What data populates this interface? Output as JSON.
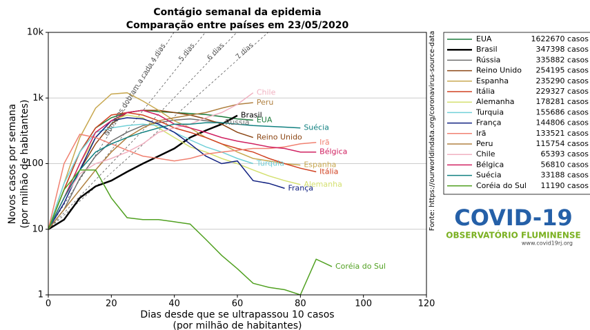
{
  "chart_data": {
    "type": "line",
    "title": "Contágio semanal da epidemia",
    "subtitle": "Comparação entre países em 23/05/2020",
    "ylabel": [
      "Novos casos por semana",
      "(por milhão de habitantes)"
    ],
    "xlabel": [
      "Dias desde que se ultrapassou 10 casos",
      "(por milhão de habitantes)"
    ],
    "log_y": true,
    "grid": true,
    "xlim": [
      0,
      120
    ],
    "xticks": [
      0,
      20,
      40,
      60,
      80,
      100,
      120
    ],
    "ylim": [
      1,
      10000
    ],
    "yticks": [
      1,
      10,
      100,
      {
        "value": 1000,
        "label": "1k"
      },
      {
        "value": 10000,
        "label": "10k"
      }
    ],
    "x": [
      0,
      5,
      10,
      15,
      20,
      25,
      30,
      35,
      40,
      45,
      50,
      55,
      60,
      65,
      70,
      75,
      80,
      85,
      90
    ],
    "reference_lines": [
      {
        "label": "Números dobram a cada 4 dias",
        "doubling_days": 4
      },
      {
        "label": "5 dias",
        "doubling_days": 5
      },
      {
        "label": "6 dias",
        "doubling_days": 6
      },
      {
        "label": "7 dias",
        "doubling_days": 7
      }
    ],
    "series": [
      {
        "name": "EUA",
        "cases_label": "1622670 casos",
        "color": "#1a7a3a",
        "values": [
          10,
          40,
          150,
          350,
          500,
          600,
          650,
          620,
          600,
          580,
          560,
          520,
          480,
          460,
          null,
          null,
          null,
          null,
          null
        ]
      },
      {
        "name": "Brasil",
        "cases_label": "347398 casos",
        "color": "#000000",
        "linewidth": 2.5,
        "values": [
          10,
          14,
          30,
          45,
          55,
          75,
          100,
          130,
          170,
          250,
          320,
          400,
          540,
          null,
          null,
          null,
          null,
          null,
          null
        ]
      },
      {
        "name": "Rússia",
        "cases_label": "335882 casos",
        "color": "#6e6e6e",
        "values": [
          10,
          20,
          60,
          130,
          220,
          300,
          380,
          420,
          460,
          480,
          450,
          420,
          null,
          null,
          null,
          null,
          null,
          null,
          null
        ]
      },
      {
        "name": "Reino Unido",
        "cases_label": "254195 casos",
        "color": "#8b4513",
        "values": [
          10,
          30,
          80,
          200,
          400,
          600,
          650,
          650,
          600,
          550,
          480,
          400,
          300,
          250,
          null,
          null,
          null,
          null,
          null
        ]
      },
      {
        "name": "Espanha",
        "cases_label": "235290 casos",
        "color": "#c8a850",
        "values": [
          10,
          50,
          250,
          700,
          1150,
          1200,
          900,
          650,
          450,
          350,
          250,
          200,
          150,
          120,
          110,
          100,
          95,
          null,
          null
        ]
      },
      {
        "name": "Itália",
        "cases_label": "229327 casos",
        "color": "#d04020",
        "values": [
          10,
          40,
          150,
          350,
          550,
          600,
          550,
          450,
          350,
          300,
          250,
          200,
          170,
          150,
          120,
          100,
          85,
          75,
          null
        ]
      },
      {
        "name": "Alemanha",
        "cases_label": "178281 casos",
        "color": "#d4e070",
        "values": [
          10,
          30,
          100,
          250,
          450,
          550,
          500,
          350,
          250,
          180,
          150,
          120,
          100,
          80,
          65,
          55,
          48,
          null,
          null
        ]
      },
      {
        "name": "Turquia",
        "cases_label": "155686 casos",
        "color": "#70d0d8",
        "values": [
          10,
          50,
          150,
          300,
          350,
          380,
          400,
          380,
          300,
          230,
          180,
          150,
          120,
          100,
          null,
          null,
          null,
          null,
          null
        ]
      },
      {
        "name": "França",
        "cases_label": "144806 casos",
        "color": "#102080",
        "values": [
          10,
          25,
          80,
          250,
          450,
          500,
          480,
          400,
          300,
          200,
          130,
          100,
          110,
          55,
          50,
          42,
          null,
          null,
          null
        ]
      },
      {
        "name": "Irã",
        "cases_label": "133521 casos",
        "color": "#f08070",
        "values": [
          10,
          100,
          280,
          250,
          200,
          160,
          130,
          120,
          110,
          120,
          140,
          150,
          160,
          170,
          170,
          180,
          200,
          210,
          null
        ]
      },
      {
        "name": "Peru",
        "cases_label": "115754 casos",
        "color": "#b08040",
        "values": [
          10,
          20,
          40,
          80,
          150,
          250,
          350,
          450,
          500,
          550,
          600,
          700,
          800,
          850,
          null,
          null,
          null,
          null,
          null
        ]
      },
      {
        "name": "Chile",
        "cases_label": "65393 casos",
        "color": "#f0b0c0",
        "values": [
          10,
          30,
          70,
          100,
          120,
          150,
          200,
          300,
          350,
          400,
          500,
          600,
          800,
          1200,
          null,
          null,
          null,
          null,
          null
        ]
      },
      {
        "name": "Bélgica",
        "cases_label": "56810 casos",
        "color": "#d02060",
        "values": [
          10,
          30,
          100,
          300,
          450,
          600,
          650,
          550,
          400,
          350,
          300,
          250,
          220,
          200,
          180,
          170,
          150,
          150,
          null
        ]
      },
      {
        "name": "Suécia",
        "cases_label": "33188 casos",
        "color": "#108080",
        "values": [
          10,
          30,
          80,
          150,
          200,
          250,
          300,
          350,
          400,
          400,
          420,
          420,
          400,
          380,
          370,
          360,
          350,
          null,
          null
        ]
      },
      {
        "name": "Coréia do Sul",
        "cases_label": "11190 casos",
        "color": "#50a020",
        "values": [
          10,
          40,
          80,
          80,
          30,
          15,
          14,
          14,
          13,
          12,
          7,
          4,
          2.5,
          1.5,
          1.3,
          1.2,
          1,
          3.5,
          2.7
        ]
      }
    ]
  },
  "source": "Fonte: https://ourworldindata.org/coronavirus-source-data",
  "logo": {
    "title": "COVID-19",
    "subtitle": "OBSERVATÓRIO FLUMINENSE",
    "url": "www.covid19rj.org"
  }
}
